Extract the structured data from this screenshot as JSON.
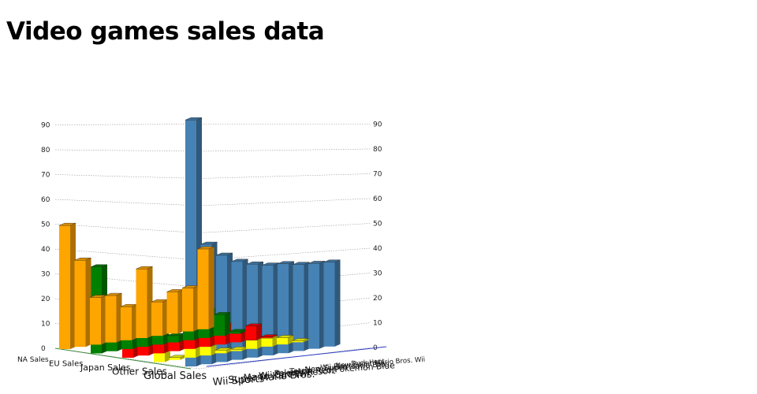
{
  "page": {
    "title": "Video games sales data"
  },
  "chart_data": {
    "type": "bar",
    "subtype": "3d-column-grid",
    "title": "",
    "xlabel": "",
    "ylabel": "",
    "ylim": [
      0,
      90
    ],
    "yticks": [
      0,
      10,
      20,
      30,
      40,
      50,
      60,
      70,
      80,
      90
    ],
    "grid": true,
    "legend": "none",
    "categories": [
      "Wii Sports",
      "Super Mario Bros.",
      "Mario Kart Wii",
      "Wii Sports Resort",
      "Pokemon Red/Pokemon Blue",
      "Tetris",
      "New Super Mario Bros.",
      "Wii Play",
      "New Super Mario Bros. Wii",
      "Duck Hunt"
    ],
    "series": [
      {
        "name": "NA Sales",
        "color": "#ffa500",
        "values": [
          41.49,
          29.08,
          15.85,
          15.75,
          11.27,
          23.2,
          11.38,
          14.03,
          14.59,
          26.93
        ]
      },
      {
        "name": "EU Sales",
        "color": "#008000",
        "values": [
          29.02,
          3.58,
          12.88,
          11.01,
          8.89,
          2.26,
          9.23,
          9.2,
          7.06,
          0.63
        ]
      },
      {
        "name": "Japan Sales",
        "color": "#ff0000",
        "values": [
          3.77,
          6.81,
          3.79,
          3.28,
          10.22,
          4.22,
          6.5,
          2.93,
          4.7,
          0.28
        ]
      },
      {
        "name": "Other Sales",
        "color": "#ffff00",
        "values": [
          8.46,
          0.77,
          3.31,
          2.96,
          1.0,
          0.58,
          2.9,
          2.85,
          2.26,
          0.47
        ]
      },
      {
        "name": "Global Sales",
        "color": "#4682b4",
        "values": [
          82.74,
          40.24,
          35.82,
          33.0,
          31.37,
          30.26,
          30.01,
          29.02,
          28.62,
          28.31
        ]
      }
    ]
  }
}
